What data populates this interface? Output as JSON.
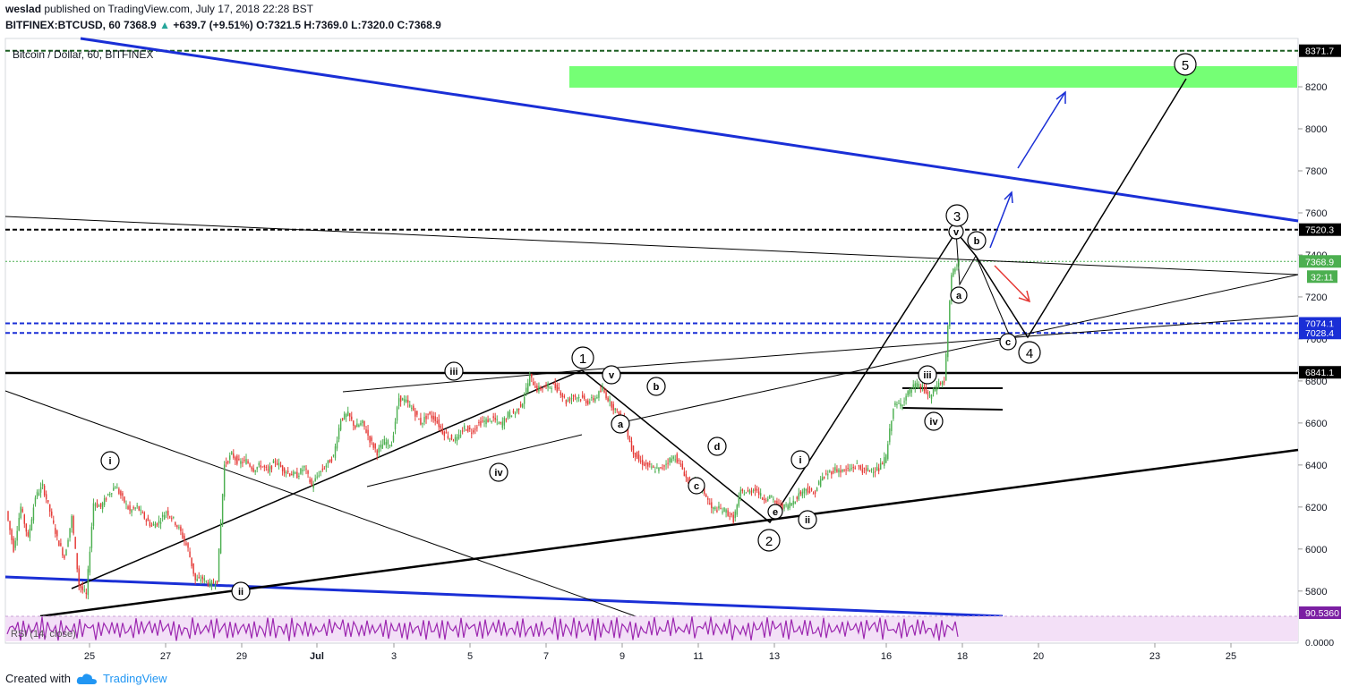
{
  "header": {
    "author": "weslad",
    "published_text": "published on TradingView.com, July 17, 2018 22:28 BST",
    "symbol": "BITFINEX:BTCUSD, 60",
    "last": "7368.9",
    "change": "+639.7 (+9.51%)",
    "ohlc": "O:7321.5 H:7369.0 L:7320.0 C:7368.9"
  },
  "footer": {
    "created_with": "Created with",
    "brand": "TradingView"
  },
  "colors": {
    "up": "#4caf50",
    "down": "#e53935",
    "blue": "#1a2fd6",
    "green_zone": "#66ff66",
    "rsi": "#9c27b0",
    "rsi_bg": "#f3e0f7"
  },
  "chart_data": {
    "type": "candlestick",
    "title": "Bitcoin / Dollar, 60, BITFINEX",
    "y_ticks": [
      5800,
      6000,
      6200,
      6400,
      6600,
      6800,
      7000,
      7200,
      7400,
      7600,
      7800,
      8000,
      8200
    ],
    "x_ticks": [
      "25",
      "27",
      "29",
      "Jul",
      "3",
      "5",
      "7",
      "9",
      "11",
      "13",
      "16",
      "18",
      "20",
      "23",
      "25"
    ],
    "ylim": [
      5680,
      8430
    ],
    "price_path": [
      [
        6180,
        6000,
        6200,
        6050,
        6250,
        6300,
        6180,
        6050,
        5960,
        6150,
        5830,
        5780
      ],
      [
        6220,
        6200,
        6260,
        6300,
        6240,
        6180,
        6200,
        6150,
        6110,
        6130,
        6180,
        6140
      ],
      [
        6080,
        6000,
        5850,
        5860,
        5830,
        5850,
        6400,
        6450,
        6410,
        6420,
        6380,
        6400
      ],
      [
        6370,
        6420,
        6380,
        6360,
        6350,
        6390,
        6300,
        6360,
        6400,
        6440,
        6620,
        6640
      ],
      [
        6580,
        6600,
        6520,
        6460,
        6510,
        6500,
        6720,
        6700,
        6660,
        6600,
        6640,
        6620
      ],
      [
        6560,
        6530,
        6520,
        6580,
        6560,
        6600,
        6610,
        6620,
        6590,
        6640,
        6650,
        6700
      ],
      [
        6820,
        6760,
        6770,
        6780,
        6760,
        6700,
        6730,
        6720,
        6700,
        6720,
        6760,
        6700
      ],
      [
        6650,
        6600,
        6480,
        6420,
        6400,
        6380,
        6380,
        6420,
        6440,
        6380,
        6300,
        6320
      ],
      [
        6270,
        6190,
        6190,
        6180,
        6140,
        6270,
        6270,
        6290,
        6240,
        6250,
        6210,
        6200
      ],
      [
        6220,
        6260,
        6290,
        6260,
        6330,
        6360,
        6380,
        6370,
        6380,
        6400,
        6370,
        6380
      ],
      [
        6380,
        6440,
        6680,
        6690,
        6740,
        6780,
        6770,
        6720,
        6780,
        6800,
        7300,
        7380
      ]
    ],
    "levels": [
      {
        "label": "8371.7",
        "value": 8371.7,
        "style": "dashed",
        "color": "#1b5e20"
      },
      {
        "label": "7520.3",
        "value": 7520.3,
        "style": "dashed",
        "color": "#000000"
      },
      {
        "label": "7368.9",
        "value": 7368.9,
        "style": "dotted",
        "color": "#4caf50"
      },
      {
        "label": "7074.1",
        "value": 7074.1,
        "style": "dashed",
        "color": "#1a2fd6"
      },
      {
        "label": "7028.4",
        "value": 7028.4,
        "style": "dashed",
        "color": "#1a2fd6"
      },
      {
        "label": "6841.1",
        "value": 6841.1,
        "style": "solid",
        "color": "#000000"
      }
    ],
    "countdown_label": "32:11",
    "target_zone": [
      8270,
      8380
    ],
    "wave_labels": [
      "i",
      "ii",
      "iii",
      "iv",
      "v",
      "a",
      "b",
      "c",
      "d",
      "e",
      "1",
      "2",
      "3",
      "4",
      "5"
    ],
    "rsi": {
      "label": "RSI (14, close)",
      "value_label": "90.5360",
      "zero_label": "0.0000"
    }
  }
}
